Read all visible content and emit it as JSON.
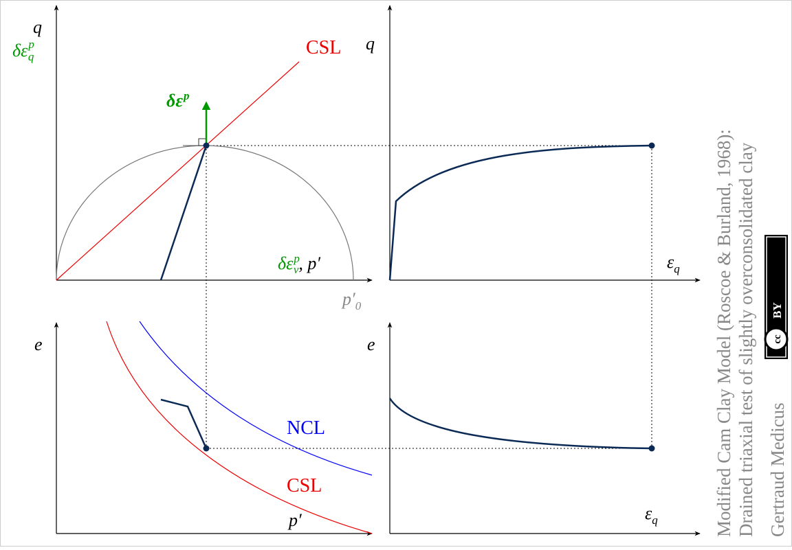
{
  "stress_plot": {
    "y_label": "q",
    "y_label_alt": {
      "sym": "δε",
      "sub": "q",
      "sup": "p"
    },
    "line_label": "CSL",
    "increment_label": {
      "sym": "δε",
      "sup": "p"
    },
    "x_label": {
      "sym": "δε",
      "sub": "v",
      "sup": "p",
      "rest": ", p′"
    },
    "p0_label": {
      "sym": "p′",
      "sub": "0"
    }
  },
  "shear_plot": {
    "y_label": "q",
    "x_label": {
      "sym": "ε",
      "sub": "q"
    }
  },
  "compression_plot": {
    "y_label": "e",
    "ncl_label": "NCL",
    "csl_label": "CSL",
    "x_label": "p′"
  },
  "void_plot": {
    "y_label": "e",
    "x_label": {
      "sym": "ε",
      "sub": "q"
    }
  },
  "caption": {
    "title": "Modified Cam Clay Model (Roscoe & Burland, 1968):",
    "subtitle": "Drained triaxial test of slightly overconsolidated clay",
    "author": "Gertraud Medicus"
  },
  "license": {
    "cc": "cc",
    "by": "BY"
  }
}
